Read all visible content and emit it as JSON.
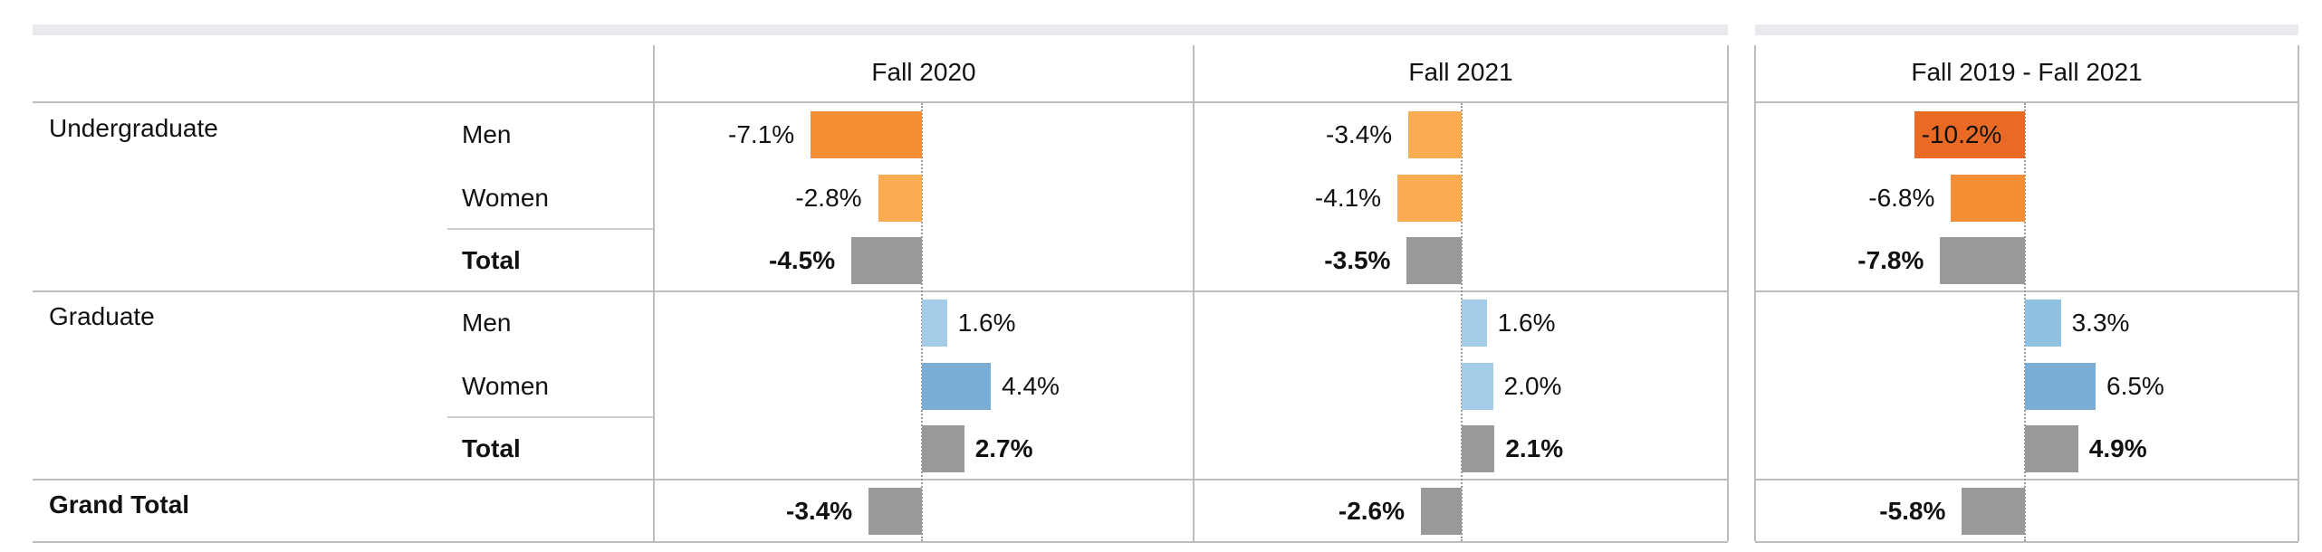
{
  "chart_data": {
    "type": "bar",
    "orientation": "horizontal",
    "columns": [
      "Fall 2020",
      "Fall 2021",
      "Fall 2019 - Fall 2021"
    ],
    "rows": [
      {
        "group": "Undergraduate",
        "label": "Men",
        "values": [
          -7.1,
          -3.4,
          -10.2
        ],
        "labels": [
          "-7.1%",
          "-3.4%",
          "-10.2%"
        ],
        "bold": false
      },
      {
        "group": "",
        "label": "Women",
        "values": [
          -2.8,
          -4.1,
          -6.8
        ],
        "labels": [
          "-2.8%",
          "-4.1%",
          "-6.8%"
        ],
        "bold": false
      },
      {
        "group": "",
        "label": "Total",
        "values": [
          -4.5,
          -3.5,
          -7.8
        ],
        "labels": [
          "-4.5%",
          "-3.5%",
          "-7.8%"
        ],
        "bold": true
      },
      {
        "group": "Graduate",
        "label": "Men",
        "values": [
          1.6,
          1.6,
          3.3
        ],
        "labels": [
          "1.6%",
          "1.6%",
          "3.3%"
        ],
        "bold": false
      },
      {
        "group": "",
        "label": "Women",
        "values": [
          4.4,
          2.0,
          6.5
        ],
        "labels": [
          "4.4%",
          "2.0%",
          "6.5%"
        ],
        "bold": false
      },
      {
        "group": "",
        "label": "Total",
        "values": [
          2.7,
          2.1,
          4.9
        ],
        "labels": [
          "2.7%",
          "2.1%",
          "4.9%"
        ],
        "bold": true
      },
      {
        "group": "Grand Total",
        "label": "",
        "values": [
          -3.4,
          -2.6,
          -5.8
        ],
        "labels": [
          "-3.4%",
          "-2.6%",
          "-5.8%"
        ],
        "bold": true
      }
    ],
    "colors": {
      "total": "#999999",
      "negative_scale": [
        "#fdb863",
        "#fcac50",
        "#f58f35",
        "#e86a24"
      ],
      "positive_scale": [
        "#a4cce6",
        "#8ec2e0",
        "#7aaed6"
      ]
    }
  }
}
